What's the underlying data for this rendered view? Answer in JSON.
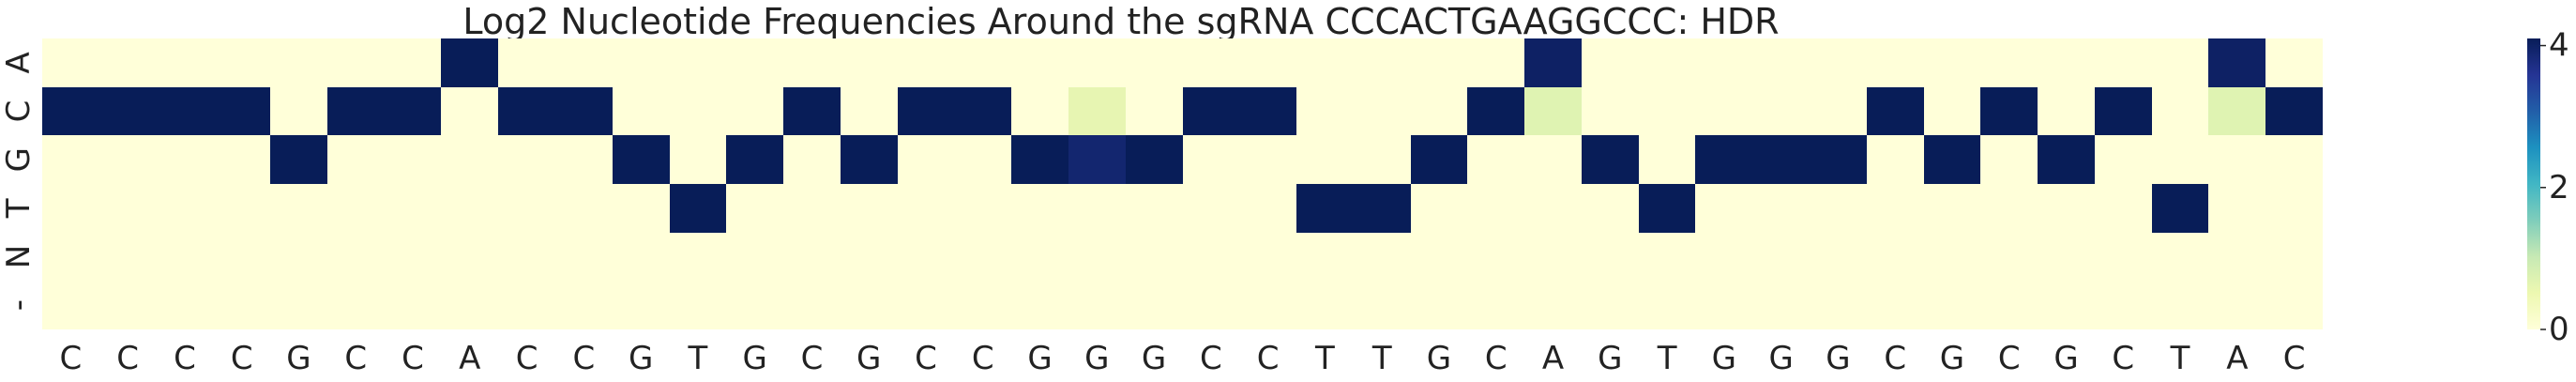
{
  "chart_data": {
    "type": "heatmap",
    "title": "Log2 Nucleotide Frequencies Around the sgRNA CCCACTGAAGGCCC: HDR",
    "xlabel": "",
    "ylabel": "",
    "x_categories": [
      "C",
      "C",
      "C",
      "C",
      "G",
      "C",
      "C",
      "A",
      "C",
      "C",
      "G",
      "T",
      "G",
      "C",
      "G",
      "C",
      "C",
      "G",
      "G",
      "G",
      "C",
      "C",
      "T",
      "T",
      "G",
      "C",
      "A",
      "G",
      "T",
      "G",
      "G",
      "G",
      "C",
      "G",
      "C",
      "G",
      "C",
      "T",
      "A",
      "C"
    ],
    "y_categories": [
      "A",
      "C",
      "G",
      "T",
      "N",
      "-"
    ],
    "values": [
      [
        0,
        0,
        0,
        0,
        0,
        0,
        0,
        4.1,
        0,
        0,
        0,
        0,
        0,
        0,
        0,
        0,
        0,
        0,
        0,
        0,
        0,
        0,
        0,
        0,
        0,
        0,
        4.0,
        0,
        0,
        0,
        0,
        0,
        0,
        0,
        0,
        0,
        0,
        0,
        4.0,
        0
      ],
      [
        4.1,
        4.1,
        4.1,
        4.1,
        0,
        4.1,
        4.1,
        0,
        4.1,
        4.1,
        0,
        0,
        0,
        4.1,
        0,
        4.1,
        4.1,
        0,
        0.6,
        0,
        4.1,
        4.1,
        0,
        0,
        0,
        4.1,
        0.7,
        0,
        0,
        0,
        0,
        0,
        4.1,
        0,
        4.1,
        0,
        4.1,
        0,
        0.7,
        4.1
      ],
      [
        0,
        0,
        0,
        0,
        4.1,
        0,
        0,
        0,
        0,
        0,
        4.1,
        0,
        4.1,
        0,
        4.1,
        0,
        0,
        4.1,
        3.9,
        4.1,
        0,
        0,
        0,
        0,
        4.1,
        0,
        0,
        4.1,
        0,
        4.1,
        4.1,
        4.1,
        0,
        4.1,
        0,
        4.1,
        0,
        0,
        0,
        0
      ],
      [
        0,
        0,
        0,
        0,
        0,
        0,
        0,
        0,
        0,
        0,
        0,
        4.1,
        0,
        0,
        0,
        0,
        0,
        0,
        0,
        0,
        0,
        0,
        4.1,
        4.1,
        0,
        0,
        0,
        0,
        4.1,
        0,
        0,
        0,
        0,
        0,
        0,
        0,
        0,
        4.1,
        0,
        0
      ],
      [
        0,
        0,
        0,
        0,
        0,
        0,
        0,
        0,
        0,
        0,
        0,
        0,
        0,
        0,
        0,
        0,
        0,
        0,
        0,
        0,
        0,
        0,
        0,
        0,
        0,
        0,
        0,
        0,
        0,
        0,
        0,
        0,
        0,
        0,
        0,
        0,
        0,
        0,
        0,
        0
      ],
      [
        0,
        0,
        0,
        0,
        0,
        0,
        0,
        0,
        0,
        0,
        0,
        0,
        0,
        0,
        0,
        0,
        0,
        0,
        0,
        0,
        0,
        0,
        0,
        0,
        0,
        0,
        0,
        0,
        0,
        0,
        0,
        0,
        0,
        0,
        0,
        0,
        0,
        0,
        0,
        0
      ]
    ],
    "colorscale": "YlGnBu",
    "vmin": 0,
    "vmax": 4.1,
    "colorbar_ticks": [
      "0",
      "2",
      "4"
    ],
    "colorbar_tick_values": [
      0,
      2,
      4
    ],
    "grid": false,
    "legend": "colorbar-right"
  }
}
